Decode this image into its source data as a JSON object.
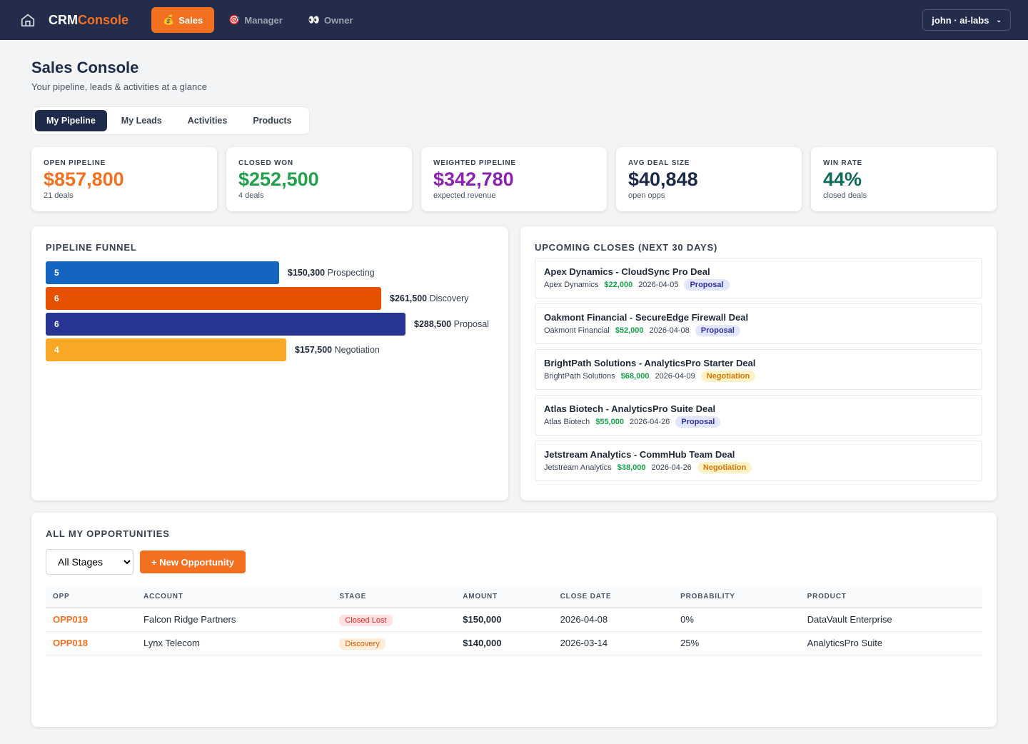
{
  "nav": {
    "brand_a": "CRM",
    "brand_b": "Console",
    "items": [
      {
        "icon": "💰",
        "label": "Sales"
      },
      {
        "icon": "🎯",
        "label": "Manager"
      },
      {
        "icon": "👀",
        "label": "Owner"
      }
    ],
    "user": "john · ai-labs"
  },
  "page": {
    "title": "Sales Console",
    "subtitle": "Your pipeline, leads & activities at a glance"
  },
  "tabs": [
    "My Pipeline",
    "My Leads",
    "Activities",
    "Products"
  ],
  "kpis": [
    {
      "label": "OPEN PIPELINE",
      "value": "$857,800",
      "sub": "21 deals",
      "color": "#f37021"
    },
    {
      "label": "CLOSED WON",
      "value": "$252,500",
      "sub": "4 deals",
      "color": "#22a04b"
    },
    {
      "label": "WEIGHTED PIPELINE",
      "value": "$342,780",
      "sub": "expected revenue",
      "color": "#8b22b0"
    },
    {
      "label": "AVG DEAL SIZE",
      "value": "$40,848",
      "sub": "open opps",
      "color": "#1e2a4a"
    },
    {
      "label": "WIN RATE",
      "value": "44%",
      "sub": "closed deals",
      "color": "#0f6b5c"
    }
  ],
  "funnel": {
    "title": "PIPELINE FUNNEL",
    "stages": [
      {
        "count": "5",
        "amount": "$150,300",
        "value": 150300,
        "stage": "Prospecting",
        "color": "#1565c0"
      },
      {
        "count": "6",
        "amount": "$261,500",
        "value": 261500,
        "stage": "Discovery",
        "color": "#e65100"
      },
      {
        "count": "6",
        "amount": "$288,500",
        "value": 288500,
        "stage": "Proposal",
        "color": "#283593"
      },
      {
        "count": "4",
        "amount": "$157,500",
        "value": 157500,
        "stage": "Negotiation",
        "color": "#f9a825"
      }
    ]
  },
  "upcoming": {
    "title": "UPCOMING CLOSES (NEXT 30 DAYS)",
    "deals": [
      {
        "title": "Apex Dynamics - CloudSync Pro Deal",
        "account": "Apex Dynamics",
        "amount": "$22,000",
        "date": "2026-04-05",
        "stage": "Proposal"
      },
      {
        "title": "Oakmont Financial - SecureEdge Firewall Deal",
        "account": "Oakmont Financial",
        "amount": "$52,000",
        "date": "2026-04-08",
        "stage": "Proposal"
      },
      {
        "title": "BrightPath Solutions - AnalyticsPro Starter Deal",
        "account": "BrightPath Solutions",
        "amount": "$68,000",
        "date": "2026-04-09",
        "stage": "Negotiation"
      },
      {
        "title": "Atlas Biotech - AnalyticsPro Suite Deal",
        "account": "Atlas Biotech",
        "amount": "$55,000",
        "date": "2026-04-26",
        "stage": "Proposal"
      },
      {
        "title": "Jetstream Analytics - CommHub Team Deal",
        "account": "Jetstream Analytics",
        "amount": "$38,000",
        "date": "2026-04-26",
        "stage": "Negotiation"
      }
    ]
  },
  "opps": {
    "title": "ALL MY OPPORTUNITIES",
    "filter": "All Stages",
    "new_label": "+ New Opportunity",
    "columns": [
      "OPP",
      "ACCOUNT",
      "STAGE",
      "AMOUNT",
      "CLOSE DATE",
      "PROBABILITY",
      "PRODUCT"
    ],
    "rows": [
      {
        "opp": "OPP019",
        "account": "Falcon Ridge Partners",
        "stage": "Closed Lost",
        "amount": "$150,000",
        "date": "2026-04-08",
        "prob": "0%",
        "product": "DataVault Enterprise"
      },
      {
        "opp": "OPP018",
        "account": "Lynx Telecom",
        "stage": "Discovery",
        "amount": "$140,000",
        "date": "2026-03-14",
        "prob": "25%",
        "product": "AnalyticsPro Suite"
      }
    ]
  }
}
